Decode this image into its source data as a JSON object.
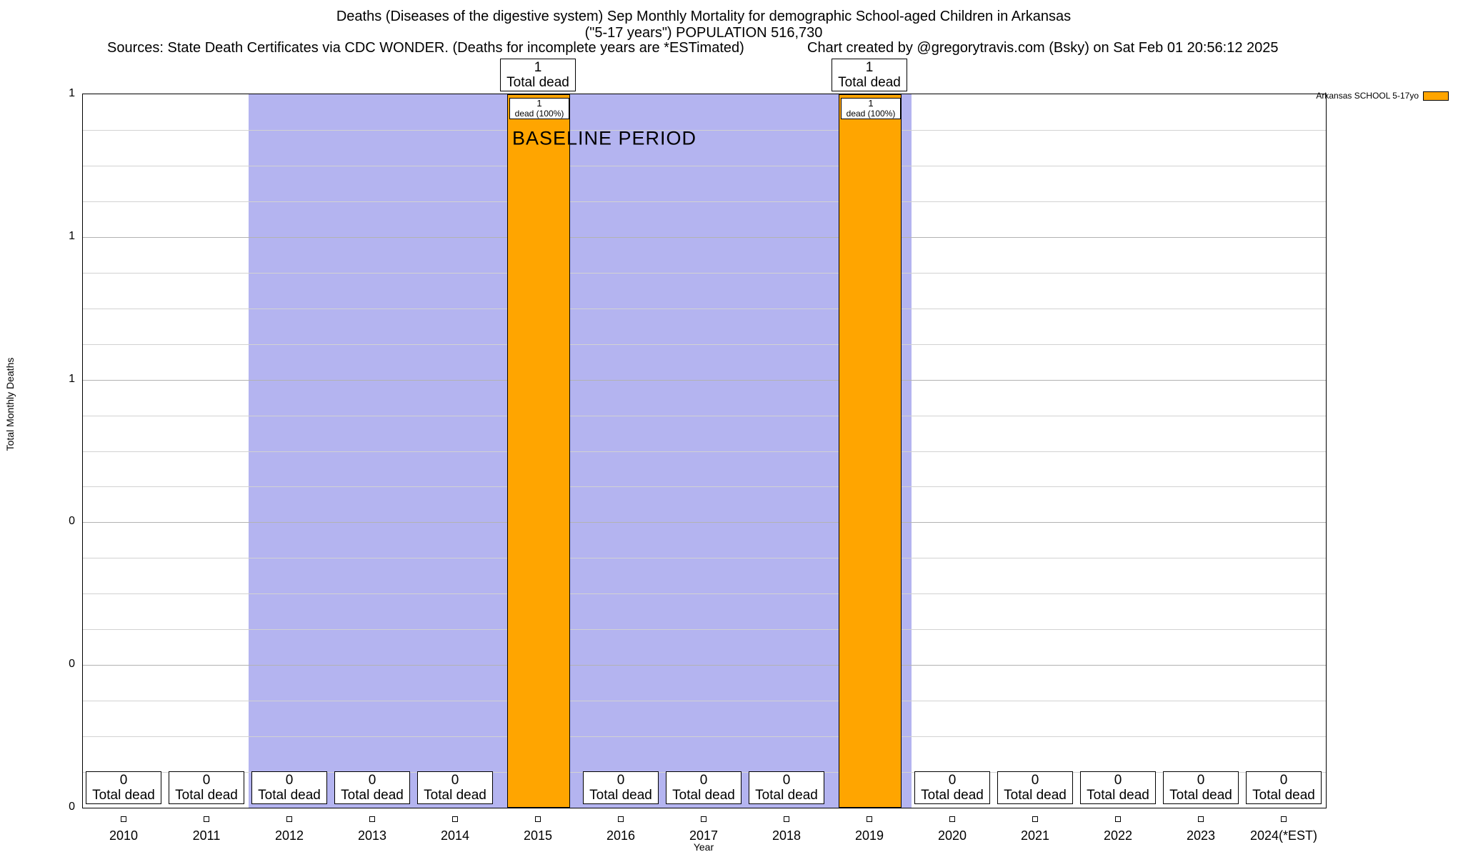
{
  "header": {
    "title_line1": "Deaths (Diseases of the digestive system) Sep Monthly Mortality for demographic School-aged Children in Arkansas",
    "title_line2": "(\"5-17 years\") POPULATION 516,730",
    "sources": "Sources: State Death Certificates via CDC WONDER. (Deaths for incomplete years are *ESTimated)",
    "credit": "Chart created by @gregorytravis.com (Bsky) on Sat Feb 01 20:56:12 2025"
  },
  "chart_data": {
    "type": "bar",
    "title": "Deaths (Diseases of the digestive system) Sep Monthly Mortality for demographic School-aged Children in Arkansas (\"5-17 years\") POPULATION 516,730",
    "xlabel": "Year",
    "ylabel": "Total Monthly Deaths",
    "ylim": [
      0,
      1
    ],
    "grid": true,
    "minor_grid_step": 0.05,
    "yticks": [
      {
        "value": 0.0,
        "label": "0"
      },
      {
        "value": 0.2,
        "label": "0"
      },
      {
        "value": 0.4,
        "label": "0"
      },
      {
        "value": 0.6,
        "label": "1"
      },
      {
        "value": 0.8,
        "label": "1"
      },
      {
        "value": 1.0,
        "label": "1"
      }
    ],
    "categories": [
      "2010",
      "2011",
      "2012",
      "2013",
      "2014",
      "2015",
      "2016",
      "2017",
      "2018",
      "2019",
      "2020",
      "2021",
      "2022",
      "2023",
      "2024(*EST)"
    ],
    "series": [
      {
        "name": "Arkansas SCHOOL 5-17yo",
        "color": "#ffa500",
        "values": [
          0,
          0,
          0,
          0,
          0,
          1,
          0,
          0,
          0,
          1,
          0,
          0,
          0,
          0,
          0
        ]
      }
    ],
    "annotations": {
      "total_dead_label": "Total dead",
      "bar_inner_label": "dead (100%)"
    },
    "baseline": {
      "label": "BASELINE PERIOD",
      "from_category": "2012",
      "to_category": "2019",
      "color": "#b4b4f0"
    },
    "legend": {
      "position": "top-right",
      "label": "Arkansas SCHOOL 5-17yo",
      "swatch_color": "#ffa500"
    }
  }
}
